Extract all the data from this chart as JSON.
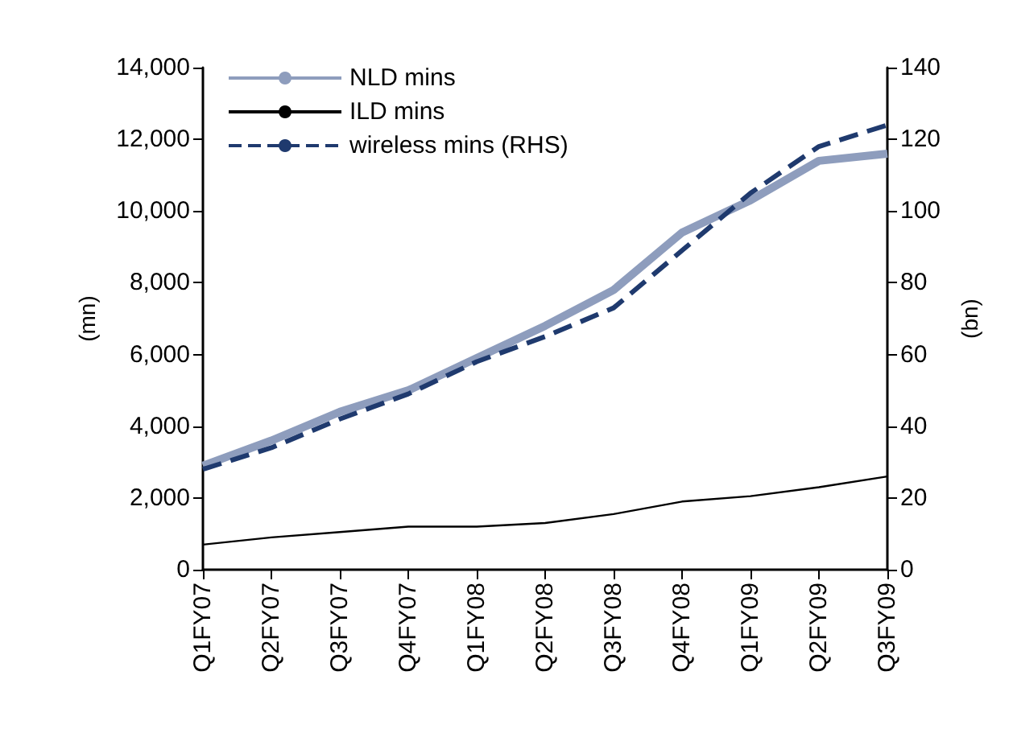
{
  "chart_data": {
    "type": "line",
    "categories": [
      "Q1FY07",
      "Q2FY07",
      "Q3FY07",
      "Q4FY07",
      "Q1FY08",
      "Q2FY08",
      "Q3FY08",
      "Q4FY08",
      "Q1FY09",
      "Q2FY09",
      "Q3FY09"
    ],
    "series": [
      {
        "name": "NLD mins",
        "color": "#8e9dbd",
        "values": [
          2900,
          3600,
          4400,
          5000,
          5900,
          6800,
          7800,
          9400,
          10300,
          11400,
          11600
        ]
      },
      {
        "name": "ILD mins",
        "color": "#000000",
        "values": [
          700,
          900,
          1050,
          1200,
          1200,
          1300,
          1550,
          1900,
          2050,
          2300,
          2600
        ]
      },
      {
        "name": "wireless mins (RHS)",
        "color": "#1f3a6e",
        "axis": "y2",
        "line_style": "dashed",
        "values": [
          28,
          34,
          42,
          49,
          58,
          65,
          73,
          89,
          105,
          118,
          124
        ]
      }
    ],
    "ylabel": "(mn)",
    "y2label": "(bn)",
    "ylim": [
      0,
      14000
    ],
    "yticks": [
      0,
      {
        "value": 2000,
        "label": "2,000"
      },
      {
        "value": 4000,
        "label": "4,000"
      },
      {
        "value": 6000,
        "label": "6,000"
      },
      {
        "value": 8000,
        "label": "8,000"
      },
      {
        "value": 10000,
        "label": "10,000"
      },
      {
        "value": 12000,
        "label": "12,000"
      },
      {
        "value": 14000,
        "label": "14,000"
      }
    ],
    "y2lim": [
      0,
      140
    ],
    "y2ticks": [
      0,
      20,
      40,
      60,
      80,
      100,
      120,
      140
    ],
    "legend": "top left",
    "grid": false,
    "marker": "none"
  }
}
